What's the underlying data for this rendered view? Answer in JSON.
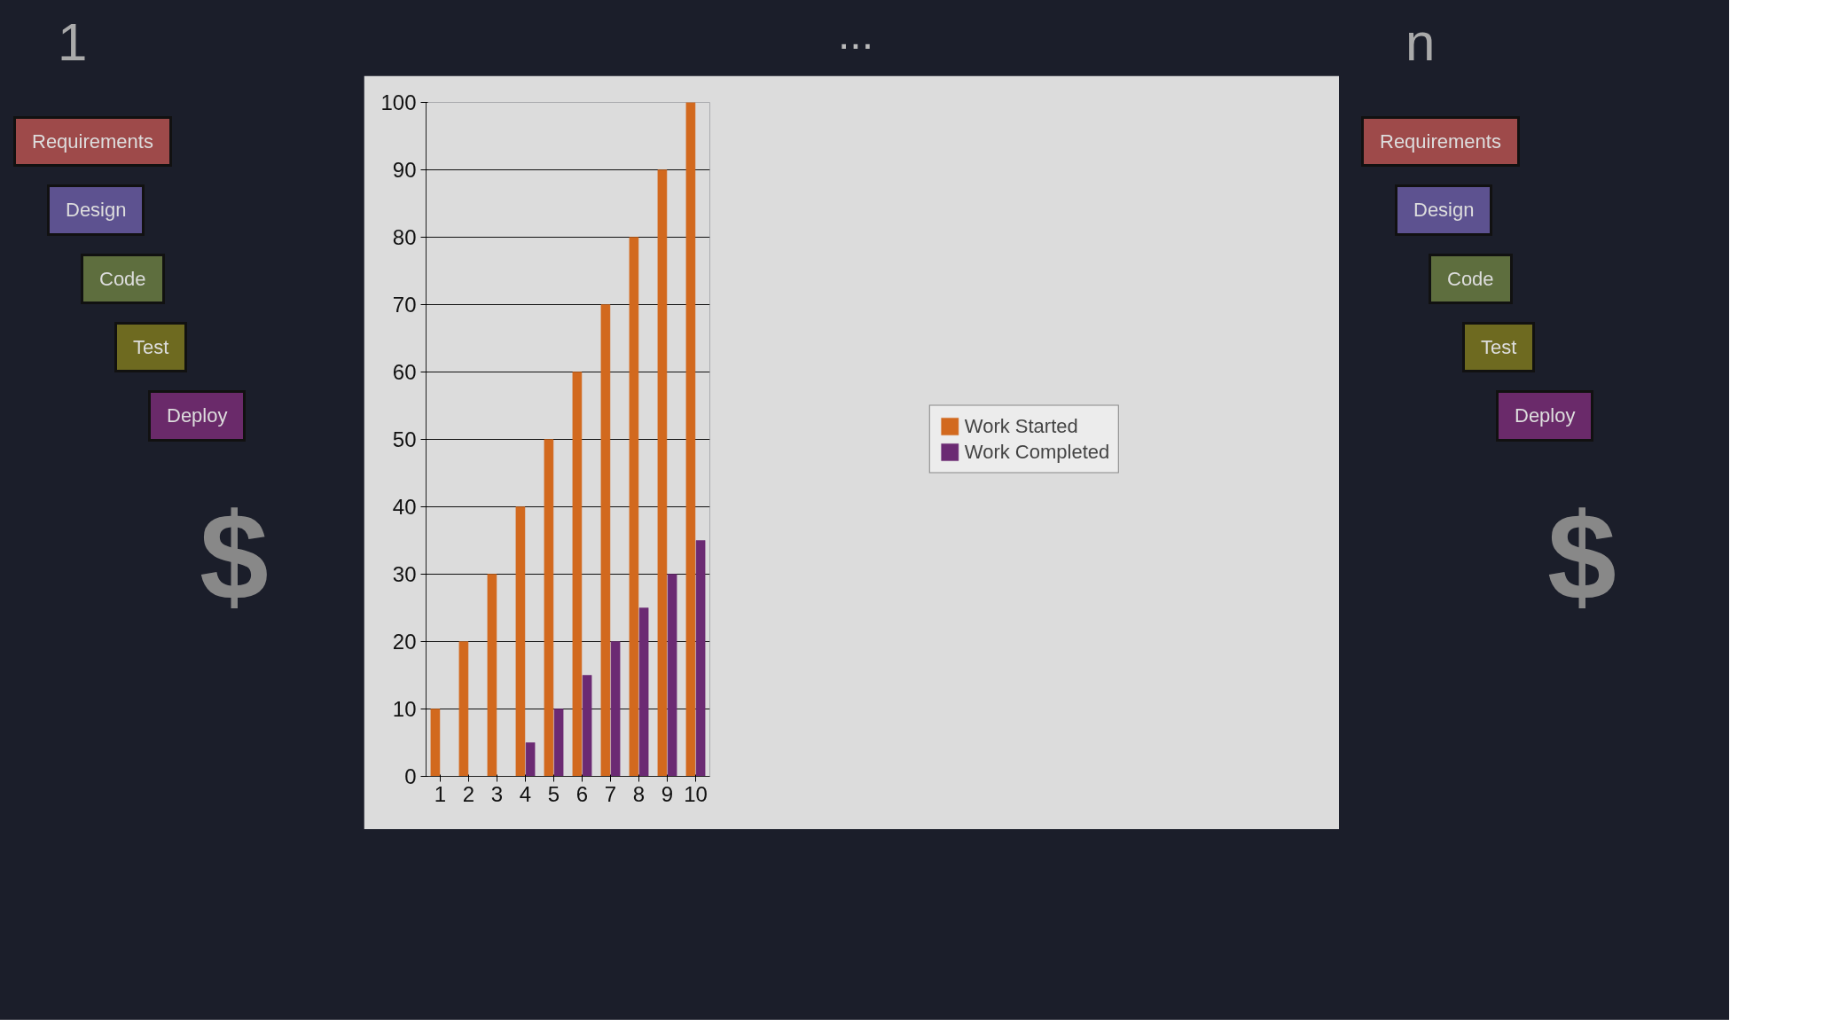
{
  "chart_data": {
    "type": "bar",
    "categories": [
      "1",
      "2",
      "3",
      "4",
      "5",
      "6",
      "7",
      "8",
      "9",
      "10"
    ],
    "series": [
      {
        "name": "Work Started",
        "color": "#d2691e",
        "values": [
          10,
          20,
          30,
          40,
          50,
          60,
          70,
          80,
          90,
          100
        ]
      },
      {
        "name": "Work Completed",
        "color": "#6b2a73",
        "values": [
          0,
          0,
          0,
          5,
          10,
          15,
          20,
          25,
          30,
          35
        ]
      }
    ],
    "ylim": [
      0,
      100
    ],
    "yticks": [
      0,
      10,
      20,
      30,
      40,
      50,
      60,
      70,
      80,
      90,
      100
    ],
    "grid": "y",
    "legend": "right",
    "annotations": [
      "1",
      "Requirements",
      "Design",
      "Code",
      "Test",
      "Deploy",
      "$",
      "...",
      "n",
      "Requirements",
      "Design",
      "Code",
      "Test",
      "Deploy",
      "$"
    ]
  }
}
